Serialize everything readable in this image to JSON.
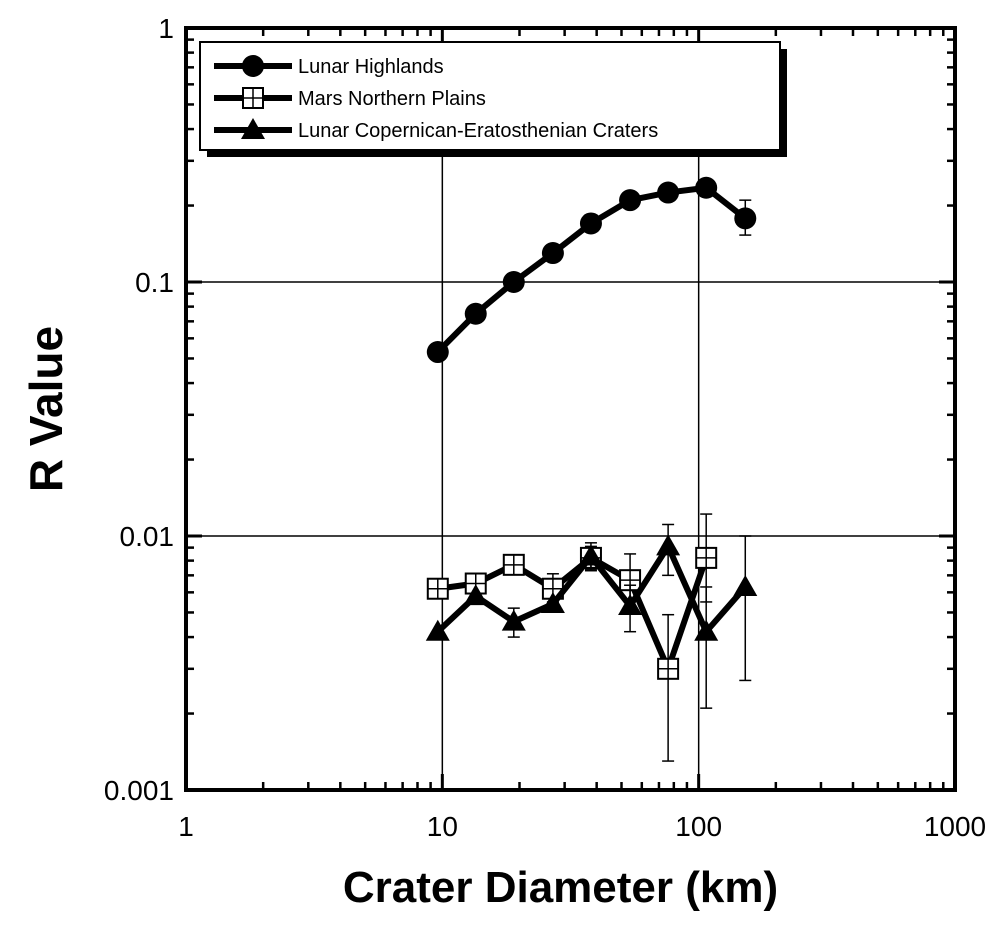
{
  "chart_data": {
    "type": "scatter",
    "xlabel": "Crater Diameter (km)",
    "ylabel": "R Value",
    "xscale": "log",
    "yscale": "log",
    "xlim": [
      1,
      1000
    ],
    "ylim": [
      0.001,
      1
    ],
    "x_ticks": [
      "1",
      "10",
      "100",
      "1000"
    ],
    "y_ticks": [
      "0.001",
      "0.01",
      "0.1",
      "1"
    ],
    "grid": true,
    "legend_position": "top-left",
    "series": [
      {
        "name": "Lunar Highlands",
        "marker": "filled-circle",
        "x": [
          9.6,
          13.5,
          19,
          27,
          38,
          54,
          76,
          107,
          152
        ],
        "y": [
          0.053,
          0.075,
          0.1,
          0.13,
          0.17,
          0.21,
          0.225,
          0.235,
          0.178
        ],
        "err_lo": [
          null,
          null,
          null,
          null,
          null,
          null,
          null,
          null,
          0.153
        ],
        "err_hi": [
          null,
          null,
          null,
          null,
          null,
          null,
          null,
          null,
          0.21
        ]
      },
      {
        "name": "Mars Northern Plains",
        "marker": "open-square-cross",
        "x": [
          9.6,
          13.5,
          19,
          27,
          38,
          54,
          76,
          107
        ],
        "y": [
          0.0062,
          0.0065,
          0.0077,
          0.0062,
          0.0082,
          0.0067,
          0.003,
          0.0082
        ],
        "err_lo": [
          null,
          null,
          null,
          0.0055,
          0.0073,
          0.0052,
          0.0013,
          0.0055
        ],
        "err_hi": [
          null,
          null,
          null,
          0.0071,
          0.0091,
          0.0085,
          0.0049,
          0.0122
        ]
      },
      {
        "name": "Lunar Copernican-Eratosthenian Craters",
        "marker": "filled-triangle",
        "x": [
          9.6,
          13.5,
          19,
          27,
          38,
          54,
          76,
          107,
          152
        ],
        "y": [
          0.0042,
          0.0058,
          0.0046,
          0.0054,
          0.0083,
          0.0053,
          0.0091,
          0.0042,
          0.0063
        ],
        "err_lo": [
          null,
          null,
          0.004,
          null,
          0.0074,
          0.0042,
          0.007,
          0.0021,
          0.0027
        ],
        "err_hi": [
          null,
          null,
          0.0052,
          null,
          0.0094,
          0.0064,
          0.0111,
          0.0063,
          0.01
        ]
      }
    ]
  }
}
